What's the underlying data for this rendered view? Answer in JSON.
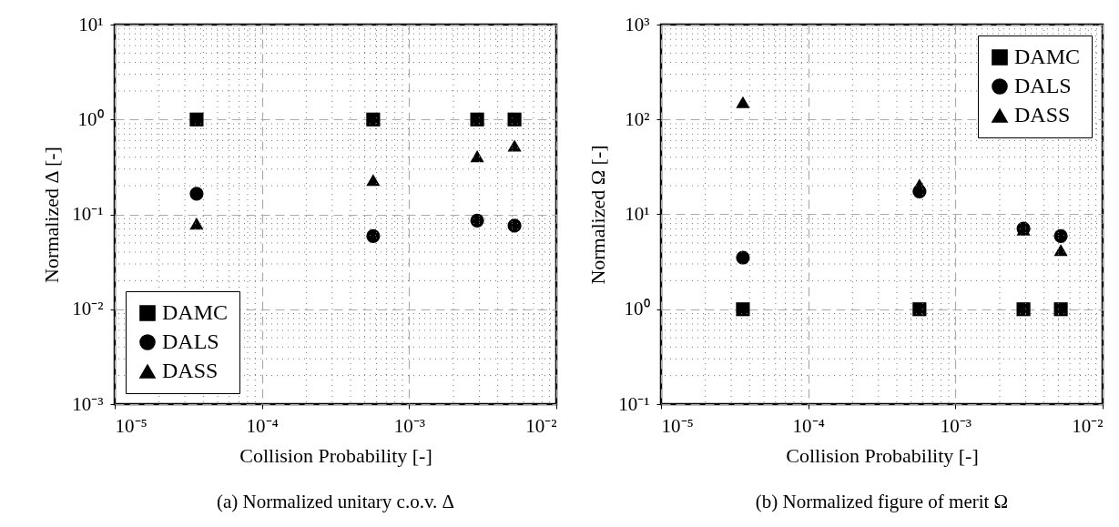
{
  "chart_data": [
    {
      "type": "scatter",
      "title": "(a) Normalized unitary c.o.v. Δ",
      "xlabel": "Collision Probability [-]",
      "ylabel": "Normalized Δ [-]",
      "log": "xy",
      "grid": true,
      "legend": "bottom left",
      "x": [
        3.6e-05,
        0.00057,
        0.0029,
        0.0052
      ],
      "series": [
        {
          "name": "DAMC",
          "color": "#000000",
          "marker": "square",
          "values": [
            1,
            1,
            1,
            1
          ]
        },
        {
          "name": "DALS",
          "color": "#000000",
          "marker": "circle",
          "values": [
            0.165,
            0.059,
            0.086,
            0.076
          ]
        },
        {
          "name": "DASS",
          "color": "#000000",
          "marker": "triangle",
          "values": [
            0.08,
            0.23,
            0.41,
            0.53
          ]
        }
      ],
      "xlim": [
        1e-05,
        0.01
      ],
      "ylim": [
        0.001,
        10
      ],
      "xticks": [
        {
          "value": 1e-05,
          "label": "10⁻⁵"
        },
        {
          "value": 0.0001,
          "label": "10⁻⁴"
        },
        {
          "value": 0.001,
          "label": "10⁻³"
        },
        {
          "value": 0.01,
          "label": "10⁻²"
        }
      ],
      "yticks": [
        {
          "value": 0.001,
          "label": "10⁻³"
        },
        {
          "value": 0.01,
          "label": "10⁻²"
        },
        {
          "value": 0.1,
          "label": "10⁻¹"
        },
        {
          "value": 1,
          "label": "10⁰"
        },
        {
          "value": 10,
          "label": "10¹"
        }
      ]
    },
    {
      "type": "scatter",
      "title": "(b) Normalized figure of merit Ω",
      "xlabel": "Collision Probability [-]",
      "ylabel": "Normalized Ω [-]",
      "log": "xy",
      "grid": true,
      "legend": "top right",
      "x": [
        3.6e-05,
        0.00057,
        0.0029,
        0.0052
      ],
      "series": [
        {
          "name": "DAMC",
          "color": "#000000",
          "marker": "square",
          "values": [
            1,
            1,
            1,
            1
          ]
        },
        {
          "name": "DALS",
          "color": "#000000",
          "marker": "circle",
          "values": [
            3.5,
            17.4,
            7.1,
            5.9
          ]
        },
        {
          "name": "DASS",
          "color": "#000000",
          "marker": "triangle",
          "values": [
            152,
            20.6,
            6.9,
            4.2
          ]
        }
      ],
      "xlim": [
        1e-05,
        0.01
      ],
      "ylim": [
        0.1,
        1000
      ],
      "xticks": [
        {
          "value": 1e-05,
          "label": "10⁻⁵"
        },
        {
          "value": 0.0001,
          "label": "10⁻⁴"
        },
        {
          "value": 0.001,
          "label": "10⁻³"
        },
        {
          "value": 0.01,
          "label": "10⁻²"
        }
      ],
      "yticks": [
        {
          "value": 0.1,
          "label": "10⁻¹"
        },
        {
          "value": 1,
          "label": "10⁰"
        },
        {
          "value": 10,
          "label": "10¹"
        },
        {
          "value": 100,
          "label": "10²"
        },
        {
          "value": 1000,
          "label": "10³"
        }
      ]
    }
  ]
}
